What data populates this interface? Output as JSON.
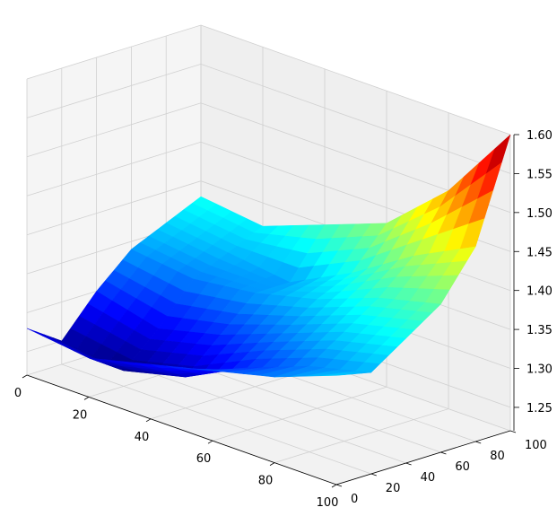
{
  "chart_data": {
    "type": "surface3d",
    "title": "",
    "xlabel": "",
    "ylabel": "",
    "zlabel": "",
    "colormap": "jet",
    "grid": true,
    "pane_color": "#f2f2f2",
    "x_ticks": [
      "0",
      "20",
      "40",
      "60",
      "80",
      "100"
    ],
    "y_ticks": [
      "0",
      "20",
      "40",
      "60",
      "80",
      "100"
    ],
    "z_ticks": [
      "1.25",
      "1.30",
      "1.35",
      "1.40",
      "1.45",
      "1.50",
      "1.55",
      "1.60"
    ],
    "xlim": [
      0,
      100
    ],
    "ylim": [
      0,
      100
    ],
    "zlim": [
      1.22,
      1.6
    ],
    "surface": {
      "x": [
        0,
        20,
        40,
        60,
        80,
        100
      ],
      "y": [
        0,
        20,
        40,
        60,
        80,
        100
      ],
      "z": [
        [
          1.28,
          1.25,
          1.3,
          1.34,
          1.36,
          1.38
        ],
        [
          1.27,
          1.24,
          1.28,
          1.33,
          1.35,
          1.37
        ],
        [
          1.29,
          1.26,
          1.3,
          1.34,
          1.34,
          1.4
        ],
        [
          1.31,
          1.3,
          1.33,
          1.36,
          1.38,
          1.43
        ],
        [
          1.33,
          1.33,
          1.36,
          1.39,
          1.43,
          1.5
        ],
        [
          1.36,
          1.35,
          1.38,
          1.41,
          1.47,
          1.6
        ]
      ]
    }
  }
}
